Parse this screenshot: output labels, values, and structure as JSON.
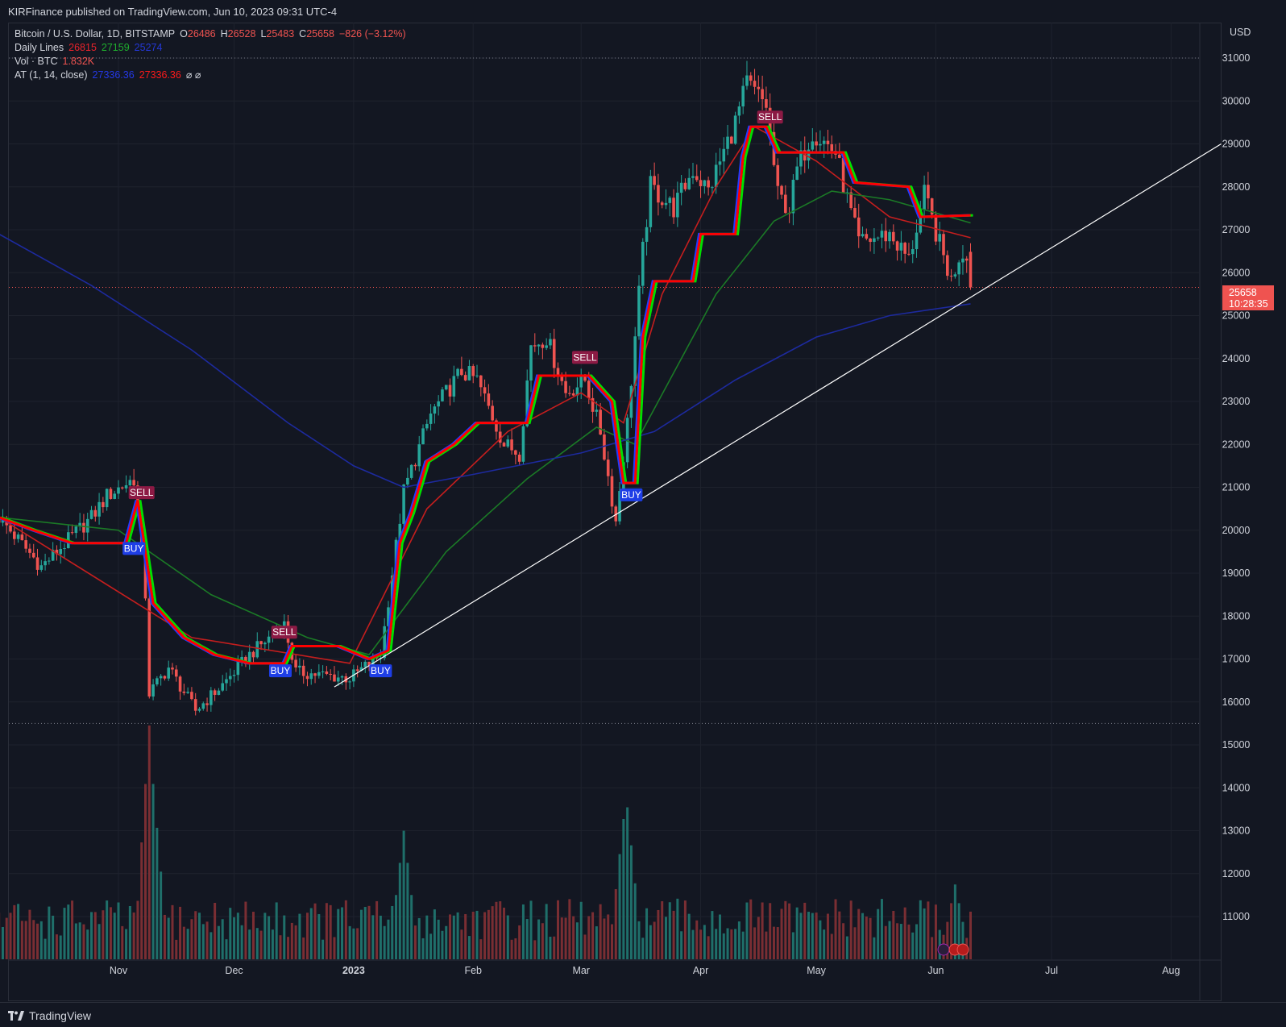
{
  "header": {
    "published": "KIRFinance published on TradingView.com, Jun 10, 2023 09:31 UTC-4"
  },
  "legend": {
    "symbol": "Bitcoin / U.S. Dollar, 1D, BITSTAMP",
    "o_label": "O",
    "o_value": "26486",
    "h_label": "H",
    "h_value": "26528",
    "l_label": "L",
    "l_value": "25483",
    "c_label": "C",
    "c_value": "25658",
    "change": "−826 (−3.12%)",
    "daily_lines_label": "Daily Lines",
    "daily_lines_values": [
      "26815",
      "27159",
      "25274"
    ],
    "vol_label": "Vol · BTC",
    "vol_value": "1.832K",
    "at_label": "AT (1, 14, close)",
    "at_values": [
      "27336.36",
      "27336.36"
    ],
    "at_symbols": "⌀  ⌀"
  },
  "price_axis": {
    "currency": "USD"
  },
  "last_price": {
    "value": "25658",
    "countdown": "10:28:35"
  },
  "footer": {
    "brand": "TradingView"
  },
  "colors": {
    "background": "#131722",
    "up": "#26a69a",
    "down": "#ef5350",
    "line_red": "#ff0000",
    "line_blue": "#1f3cff",
    "line_green": "#00e000",
    "ma_red": "#c41e1e",
    "ma_green": "#1b7a26",
    "ma_blue": "#1d2a9e",
    "buy_label": "#1e3ee6",
    "sell_label": "#8c1a44"
  },
  "chart_data": {
    "type": "candlestick",
    "y_axis": {
      "side": "right",
      "ticks": [
        11000,
        12000,
        13000,
        14000,
        15000,
        16000,
        17000,
        18000,
        19000,
        20000,
        21000,
        22000,
        23000,
        24000,
        25000,
        26000,
        27000,
        28000,
        29000,
        30000,
        31000
      ]
    },
    "x_axis_labels": [
      "Nov",
      "Dec",
      "2023",
      "Feb",
      "Mar",
      "Apr",
      "May",
      "Jun",
      "Jul",
      "Aug"
    ],
    "date_range": [
      "2022-10-01",
      "2023-06-10"
    ],
    "anchors": [
      {
        "date": "2022-10-01",
        "price": 20300
      },
      {
        "date": "2022-10-12",
        "price": 19150
      },
      {
        "date": "2022-10-25",
        "price": 20300
      },
      {
        "date": "2022-10-29",
        "price": 20800
      },
      {
        "date": "2022-11-05",
        "price": 21200
      },
      {
        "date": "2022-11-08",
        "price": 18500
      },
      {
        "date": "2022-11-09",
        "price": 16200
      },
      {
        "date": "2022-11-14",
        "price": 16800
      },
      {
        "date": "2022-11-21",
        "price": 15800
      },
      {
        "date": "2022-11-28",
        "price": 16400
      },
      {
        "date": "2022-12-05",
        "price": 17100
      },
      {
        "date": "2022-12-14",
        "price": 17800
      },
      {
        "date": "2022-12-17",
        "price": 16700
      },
      {
        "date": "2022-12-31",
        "price": 16550
      },
      {
        "date": "2023-01-08",
        "price": 17100
      },
      {
        "date": "2023-01-14",
        "price": 20900
      },
      {
        "date": "2023-01-21",
        "price": 22700
      },
      {
        "date": "2023-01-29",
        "price": 23700
      },
      {
        "date": "2023-02-02",
        "price": 23500
      },
      {
        "date": "2023-02-09",
        "price": 22000
      },
      {
        "date": "2023-02-13",
        "price": 21800
      },
      {
        "date": "2023-02-16",
        "price": 24300
      },
      {
        "date": "2023-02-20",
        "price": 24500
      },
      {
        "date": "2023-02-25",
        "price": 23200
      },
      {
        "date": "2023-03-02",
        "price": 23500
      },
      {
        "date": "2023-03-06",
        "price": 22300
      },
      {
        "date": "2023-03-10",
        "price": 20200
      },
      {
        "date": "2023-03-13",
        "price": 22500
      },
      {
        "date": "2023-03-17",
        "price": 26500
      },
      {
        "date": "2023-03-19",
        "price": 28000
      },
      {
        "date": "2023-03-25",
        "price": 27500
      },
      {
        "date": "2023-03-30",
        "price": 28400
      },
      {
        "date": "2023-04-03",
        "price": 27900
      },
      {
        "date": "2023-04-10",
        "price": 29500
      },
      {
        "date": "2023-04-13",
        "price": 30400
      },
      {
        "date": "2023-04-18",
        "price": 29900
      },
      {
        "date": "2023-04-21",
        "price": 27800
      },
      {
        "date": "2023-04-24",
        "price": 27500
      },
      {
        "date": "2023-04-26",
        "price": 28400
      },
      {
        "date": "2023-04-30",
        "price": 29300
      },
      {
        "date": "2023-05-06",
        "price": 28800
      },
      {
        "date": "2023-05-09",
        "price": 27700
      },
      {
        "date": "2023-05-12",
        "price": 26700
      },
      {
        "date": "2023-05-20",
        "price": 26900
      },
      {
        "date": "2023-05-25",
        "price": 26300
      },
      {
        "date": "2023-05-29",
        "price": 27800
      },
      {
        "date": "2023-06-05",
        "price": 25800
      },
      {
        "date": "2023-06-07",
        "price": 26400
      },
      {
        "date": "2023-06-09",
        "price": 26500
      },
      {
        "date": "2023-06-10",
        "price": 25658
      }
    ],
    "volume_profile": [
      {
        "date": "2022-11-09",
        "volume": 100
      },
      {
        "date": "2022-11-10",
        "volume": 75
      },
      {
        "date": "2023-01-14",
        "volume": 55
      },
      {
        "date": "2023-03-12",
        "volume": 60
      },
      {
        "date": "2023-03-13",
        "volume": 65
      },
      {
        "date": "2023-06-06",
        "volume": 32
      }
    ],
    "moving_averages": [
      {
        "name": "red-ma",
        "points": [
          {
            "date": "2022-10-01",
            "price": 20300
          },
          {
            "date": "2022-11-20",
            "price": 17500
          },
          {
            "date": "2022-12-31",
            "price": 16900
          },
          {
            "date": "2023-01-20",
            "price": 20500
          },
          {
            "date": "2023-02-10",
            "price": 22300
          },
          {
            "date": "2023-03-01",
            "price": 23200
          },
          {
            "date": "2023-03-12",
            "price": 22500
          },
          {
            "date": "2023-03-22",
            "price": 25500
          },
          {
            "date": "2023-04-05",
            "price": 28000
          },
          {
            "date": "2023-04-15",
            "price": 29400
          },
          {
            "date": "2023-05-01",
            "price": 28600
          },
          {
            "date": "2023-05-20",
            "price": 27300
          },
          {
            "date": "2023-06-10",
            "price": 26815
          }
        ]
      },
      {
        "name": "green-ma",
        "points": [
          {
            "date": "2022-10-01",
            "price": 20300
          },
          {
            "date": "2022-11-01",
            "price": 20000
          },
          {
            "date": "2022-11-25",
            "price": 18500
          },
          {
            "date": "2022-12-20",
            "price": 17500
          },
          {
            "date": "2023-01-05",
            "price": 17100
          },
          {
            "date": "2023-01-25",
            "price": 19500
          },
          {
            "date": "2023-02-15",
            "price": 21200
          },
          {
            "date": "2023-03-05",
            "price": 22400
          },
          {
            "date": "2023-03-15",
            "price": 22000
          },
          {
            "date": "2023-04-05",
            "price": 25500
          },
          {
            "date": "2023-04-20",
            "price": 27200
          },
          {
            "date": "2023-05-05",
            "price": 27900
          },
          {
            "date": "2023-05-20",
            "price": 27700
          },
          {
            "date": "2023-06-10",
            "price": 27159
          }
        ]
      },
      {
        "name": "blue-ma",
        "points": [
          {
            "date": "2022-10-01",
            "price": 26900
          },
          {
            "date": "2022-10-25",
            "price": 25700
          },
          {
            "date": "2022-11-20",
            "price": 24200
          },
          {
            "date": "2022-12-15",
            "price": 22500
          },
          {
            "date": "2023-01-01",
            "price": 21500
          },
          {
            "date": "2023-01-14",
            "price": 21000
          },
          {
            "date": "2023-02-01",
            "price": 21300
          },
          {
            "date": "2023-03-01",
            "price": 21800
          },
          {
            "date": "2023-03-20",
            "price": 22300
          },
          {
            "date": "2023-04-10",
            "price": 23500
          },
          {
            "date": "2023-05-01",
            "price": 24500
          },
          {
            "date": "2023-05-20",
            "price": 25000
          },
          {
            "date": "2023-06-10",
            "price": 25274
          }
        ]
      }
    ],
    "trailing_stop": [
      {
        "date": "2022-10-01",
        "price": 20300
      },
      {
        "date": "2022-10-10",
        "price": 20000
      },
      {
        "date": "2022-10-20",
        "price": 19700
      },
      {
        "date": "2022-11-03",
        "price": 19700
      },
      {
        "date": "2022-11-06",
        "price": 20700
      },
      {
        "date": "2022-11-10",
        "price": 18300
      },
      {
        "date": "2022-11-18",
        "price": 17500
      },
      {
        "date": "2022-11-26",
        "price": 17100
      },
      {
        "date": "2022-12-05",
        "price": 16900
      },
      {
        "date": "2022-12-14",
        "price": 16900
      },
      {
        "date": "2022-12-16",
        "price": 17300
      },
      {
        "date": "2022-12-28",
        "price": 17300
      },
      {
        "date": "2023-01-05",
        "price": 17000
      },
      {
        "date": "2023-01-10",
        "price": 17200
      },
      {
        "date": "2023-01-13",
        "price": 19700
      },
      {
        "date": "2023-01-16",
        "price": 20400
      },
      {
        "date": "2023-01-20",
        "price": 21600
      },
      {
        "date": "2023-01-27",
        "price": 22000
      },
      {
        "date": "2023-02-02",
        "price": 22500
      },
      {
        "date": "2023-02-15",
        "price": 22500
      },
      {
        "date": "2023-02-18",
        "price": 23600
      },
      {
        "date": "2023-03-03",
        "price": 23600
      },
      {
        "date": "2023-03-09",
        "price": 23000
      },
      {
        "date": "2023-03-12",
        "price": 21100
      },
      {
        "date": "2023-03-15",
        "price": 21100
      },
      {
        "date": "2023-03-17",
        "price": 24500
      },
      {
        "date": "2023-03-20",
        "price": 25800
      },
      {
        "date": "2023-03-30",
        "price": 25800
      },
      {
        "date": "2023-04-01",
        "price": 26900
      },
      {
        "date": "2023-04-10",
        "price": 26900
      },
      {
        "date": "2023-04-12",
        "price": 28700
      },
      {
        "date": "2023-04-14",
        "price": 29400
      },
      {
        "date": "2023-04-18",
        "price": 29400
      },
      {
        "date": "2023-04-21",
        "price": 28800
      },
      {
        "date": "2023-05-08",
        "price": 28800
      },
      {
        "date": "2023-05-11",
        "price": 28100
      },
      {
        "date": "2023-05-25",
        "price": 28000
      },
      {
        "date": "2023-05-28",
        "price": 27300
      },
      {
        "date": "2023-06-10",
        "price": 27336
      }
    ],
    "signals": [
      {
        "label": "BUY",
        "date": "2022-11-05",
        "price": 19800
      },
      {
        "label": "SELL",
        "date": "2022-11-07",
        "price": 20650
      },
      {
        "label": "BUY",
        "date": "2022-12-13",
        "price": 16950
      },
      {
        "label": "SELL",
        "date": "2022-12-14",
        "price": 17400
      },
      {
        "label": "BUY",
        "date": "2023-01-08",
        "price": 16950
      },
      {
        "label": "SELL",
        "date": "2023-03-02",
        "price": 23800
      },
      {
        "label": "BUY",
        "date": "2023-03-14",
        "price": 21050
      },
      {
        "label": "SELL",
        "date": "2023-04-19",
        "price": 29400
      }
    ],
    "trendline": {
      "from": {
        "date": "2022-12-27",
        "price": 16350
      },
      "to": {
        "date": "2023-08-14",
        "price": 29000
      }
    },
    "horizontal_levels": [
      31000,
      15500
    ],
    "last_close": 25658
  }
}
